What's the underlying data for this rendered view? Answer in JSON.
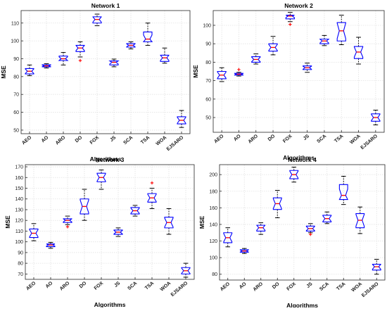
{
  "chart_data": [
    {
      "type": "box",
      "title": "Network 1",
      "xlabel": "Algorithms",
      "ylabel": "MSE",
      "categories": [
        "AEO",
        "AO",
        "ARO",
        "DO",
        "FOX",
        "JS",
        "SCA",
        "TSA",
        "WOA",
        "EJSARO"
      ],
      "ylim": [
        48,
        117
      ],
      "yticks": [
        50,
        60,
        70,
        80,
        90,
        100,
        110
      ],
      "grid": true,
      "boxes": [
        {
          "whisker_low": 80.5,
          "q1": 81.5,
          "median": 83,
          "q3": 84.5,
          "whisker_high": 86.5,
          "outliers": []
        },
        {
          "whisker_low": 84.8,
          "q1": 85.5,
          "median": 86,
          "q3": 86.6,
          "whisker_high": 87.2,
          "outliers": []
        },
        {
          "whisker_low": 86.5,
          "q1": 89,
          "median": 90,
          "q3": 91.5,
          "whisker_high": 93.5,
          "outliers": []
        },
        {
          "whisker_low": 91,
          "q1": 94,
          "median": 96,
          "q3": 97.5,
          "whisker_high": 99.5,
          "outliers": [
            89
          ]
        },
        {
          "whisker_low": 108.5,
          "q1": 110,
          "median": 112,
          "q3": 113.5,
          "whisker_high": 115,
          "outliers": []
        },
        {
          "whisker_low": 85.5,
          "q1": 86.5,
          "median": 88,
          "q3": 88.8,
          "whisker_high": 89.8,
          "outliers": []
        },
        {
          "whisker_low": 95.5,
          "q1": 96.5,
          "median": 97.5,
          "q3": 98.5,
          "whisker_high": 99.5,
          "outliers": []
        },
        {
          "whisker_low": 97.5,
          "q1": 99.5,
          "median": 101,
          "q3": 105,
          "whisker_high": 110,
          "outliers": []
        },
        {
          "whisker_low": 87.5,
          "q1": 88.5,
          "median": 90.5,
          "q3": 92,
          "whisker_high": 96,
          "outliers": []
        },
        {
          "whisker_low": 51.5,
          "q1": 53.5,
          "median": 55.5,
          "q3": 57.5,
          "whisker_high": 61,
          "outliers": []
        }
      ]
    },
    {
      "type": "box",
      "title": "Network 2",
      "xlabel": "Algorithms",
      "ylabel": "MSE",
      "categories": [
        "AEO",
        "AO",
        "ARO",
        "DO",
        "FOX",
        "JS",
        "SCA",
        "TSA",
        "WOA",
        "EJSARO"
      ],
      "ylim": [
        42,
        108
      ],
      "yticks": [
        50,
        60,
        70,
        80,
        90,
        100
      ],
      "grid": true,
      "boxes": [
        {
          "whisker_low": 69.5,
          "q1": 71,
          "median": 73,
          "q3": 75,
          "whisker_high": 77,
          "outliers": []
        },
        {
          "whisker_low": 72.5,
          "q1": 73,
          "median": 73.5,
          "q3": 74,
          "whisker_high": 74.5,
          "outliers": [
            76
          ]
        },
        {
          "whisker_low": 79,
          "q1": 80,
          "median": 81.5,
          "q3": 83,
          "whisker_high": 84.5,
          "outliers": []
        },
        {
          "whisker_low": 84,
          "q1": 86,
          "median": 88,
          "q3": 90,
          "whisker_high": 94,
          "outliers": []
        },
        {
          "whisker_low": 102,
          "q1": 103.5,
          "median": 105,
          "q3": 105.5,
          "whisker_high": 107,
          "outliers": [
            100.5
          ]
        },
        {
          "whisker_low": 74.5,
          "q1": 76,
          "median": 77,
          "q3": 78,
          "whisker_high": 79.5,
          "outliers": []
        },
        {
          "whisker_low": 89,
          "q1": 90,
          "median": 91.5,
          "q3": 92.5,
          "whisker_high": 94.5,
          "outliers": []
        },
        {
          "whisker_low": 89.5,
          "q1": 91.5,
          "median": 97,
          "q3": 101.5,
          "whisker_high": 105.5,
          "outliers": []
        },
        {
          "whisker_low": 79,
          "q1": 82,
          "median": 85.5,
          "q3": 88.5,
          "whisker_high": 93.5,
          "outliers": []
        },
        {
          "whisker_low": 46,
          "q1": 48,
          "median": 50,
          "q3": 52,
          "whisker_high": 54,
          "outliers": []
        }
      ]
    },
    {
      "type": "box",
      "title": "Network 3",
      "xlabel": "Algorithms",
      "ylabel": "MSE",
      "categories": [
        "AEO",
        "AO",
        "ARO",
        "DO",
        "FOX",
        "JS",
        "SCA",
        "TSA",
        "WOA",
        "EJSARO"
      ],
      "ylim": [
        65,
        172
      ],
      "yticks": [
        70,
        80,
        90,
        100,
        110,
        120,
        130,
        140,
        150,
        160,
        170
      ],
      "grid": true,
      "boxes": [
        {
          "whisker_low": 101,
          "q1": 104,
          "median": 108,
          "q3": 112,
          "whisker_high": 117,
          "outliers": []
        },
        {
          "whisker_low": 94,
          "q1": 95.5,
          "median": 97,
          "q3": 98,
          "whisker_high": 99.5,
          "outliers": []
        },
        {
          "whisker_low": 116,
          "q1": 118,
          "median": 120,
          "q3": 121.5,
          "whisker_high": 124,
          "outliers": [
            114
          ]
        },
        {
          "whisker_low": 120,
          "q1": 126,
          "median": 133,
          "q3": 140,
          "whisker_high": 149,
          "outliers": []
        },
        {
          "whisker_low": 149,
          "q1": 156,
          "median": 160,
          "q3": 164,
          "whisker_high": 167,
          "outliers": []
        },
        {
          "whisker_low": 105,
          "q1": 107,
          "median": 109,
          "q3": 111,
          "whisker_high": 113,
          "outliers": []
        },
        {
          "whisker_low": 124,
          "q1": 126,
          "median": 129,
          "q3": 132,
          "whisker_high": 134,
          "outliers": []
        },
        {
          "whisker_low": 131,
          "q1": 137,
          "median": 141,
          "q3": 145,
          "whisker_high": 150,
          "outliers": [
            155
          ]
        },
        {
          "whisker_low": 107,
          "q1": 113,
          "median": 118,
          "q3": 123,
          "whisker_high": 131,
          "outliers": []
        },
        {
          "whisker_low": 67,
          "q1": 70,
          "median": 73,
          "q3": 76,
          "whisker_high": 80,
          "outliers": []
        }
      ]
    },
    {
      "type": "box",
      "title": "Network 4",
      "xlabel": "Algorithms",
      "ylabel": "MSE",
      "categories": [
        "AEO",
        "AO",
        "ARO",
        "DO",
        "FOX",
        "JS",
        "SCA",
        "TSA",
        "WOA",
        "EJSARO"
      ],
      "ylim": [
        73,
        212
      ],
      "yticks": [
        80,
        100,
        120,
        140,
        160,
        180,
        200
      ],
      "grid": true,
      "boxes": [
        {
          "whisker_low": 113,
          "q1": 118,
          "median": 124,
          "q3": 130,
          "whisker_high": 136,
          "outliers": []
        },
        {
          "whisker_low": 105,
          "q1": 106.5,
          "median": 108,
          "q3": 109.5,
          "whisker_high": 111,
          "outliers": []
        },
        {
          "whisker_low": 128,
          "q1": 132,
          "median": 136,
          "q3": 139,
          "whisker_high": 142,
          "outliers": []
        },
        {
          "whisker_low": 148,
          "q1": 158,
          "median": 165,
          "q3": 172,
          "whisker_high": 181,
          "outliers": []
        },
        {
          "whisker_low": 191,
          "q1": 195,
          "median": 200,
          "q3": 205,
          "whisker_high": 209,
          "outliers": []
        },
        {
          "whisker_low": 130,
          "q1": 132,
          "median": 135,
          "q3": 138,
          "whisker_high": 141,
          "outliers": [
            128
          ]
        },
        {
          "whisker_low": 141,
          "q1": 143,
          "median": 147,
          "q3": 151,
          "whisker_high": 155,
          "outliers": []
        },
        {
          "whisker_low": 164,
          "q1": 170,
          "median": 175,
          "q3": 188,
          "whisker_high": 198,
          "outliers": []
        },
        {
          "whisker_low": 129,
          "q1": 136,
          "median": 145,
          "q3": 153,
          "whisker_high": 161,
          "outliers": []
        },
        {
          "whisker_low": 80,
          "q1": 85,
          "median": 89,
          "q3": 92,
          "whisker_high": 98,
          "outliers": []
        }
      ]
    }
  ],
  "colors": {
    "box": "#0000ff",
    "median": "#ff0000",
    "whisker": "#000000",
    "outlier": "#ff0000",
    "grid": "#e2e2e2",
    "axis": "#262626"
  }
}
